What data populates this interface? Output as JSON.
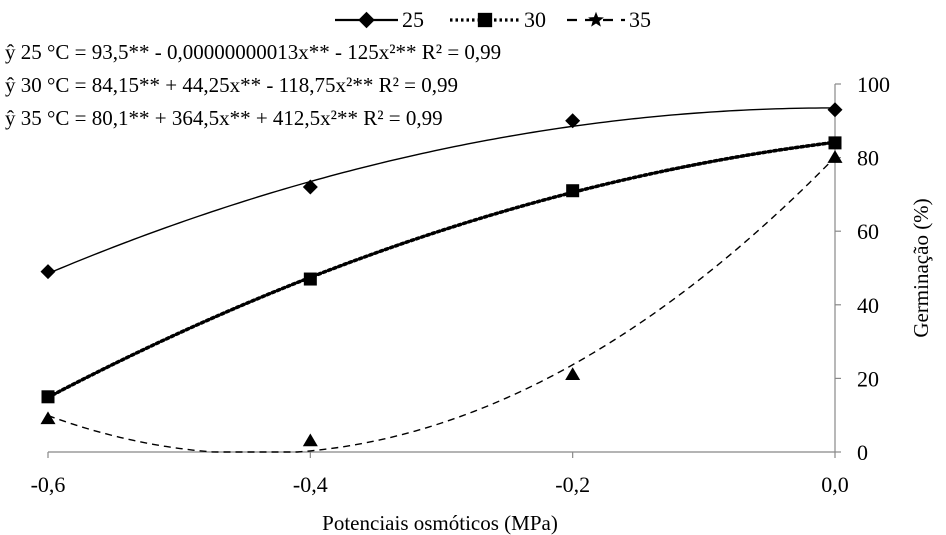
{
  "chart_data": {
    "type": "scatter",
    "xlabel": "Potenciais osmóticos (MPa)",
    "ylabel": "Germinação  (%)",
    "xlim": [
      -0.6,
      0.0
    ],
    "ylim": [
      0,
      100
    ],
    "x_ticks": [
      "-0,6",
      "-0,4",
      "-0,2",
      "0,0"
    ],
    "y_ticks": [
      "0",
      "20",
      "40",
      "60",
      "80",
      "100"
    ],
    "y_axis_position": "right",
    "grid": false,
    "legend_position": "top",
    "equations": [
      "ŷ 25 °C = 93,5** - 0,00000000013x**  - 125x²**  R² = 0,99",
      "ŷ 30 °C = 84,15**  + 44,25x**  - 118,75x²**  R² = 0,99",
      "ŷ 35 °C = 80,1**  + 364,5x**  + 412,5x²**  R² = 0,99"
    ],
    "series": [
      {
        "name": "25",
        "marker": "diamond",
        "line": "solid",
        "color": "#000000",
        "x": [
          -0.6,
          -0.4,
          -0.2,
          0.0
        ],
        "y": [
          49,
          72,
          90,
          93
        ],
        "fit": [
          93.5,
          -1.3e-10,
          -125
        ]
      },
      {
        "name": "30",
        "marker": "square",
        "line": "dotted",
        "color": "#000000",
        "x": [
          -0.6,
          -0.4,
          -0.2,
          0.0
        ],
        "y": [
          15,
          47,
          71,
          84
        ],
        "fit": [
          84.15,
          44.25,
          -118.75
        ]
      },
      {
        "name": "35",
        "marker": "triangle",
        "line": "dashed",
        "color": "#000000",
        "x": [
          -0.6,
          -0.4,
          -0.2,
          0.0
        ],
        "y": [
          9,
          3,
          21,
          80
        ],
        "fit": [
          80.1,
          364.5,
          412.5
        ]
      }
    ]
  }
}
